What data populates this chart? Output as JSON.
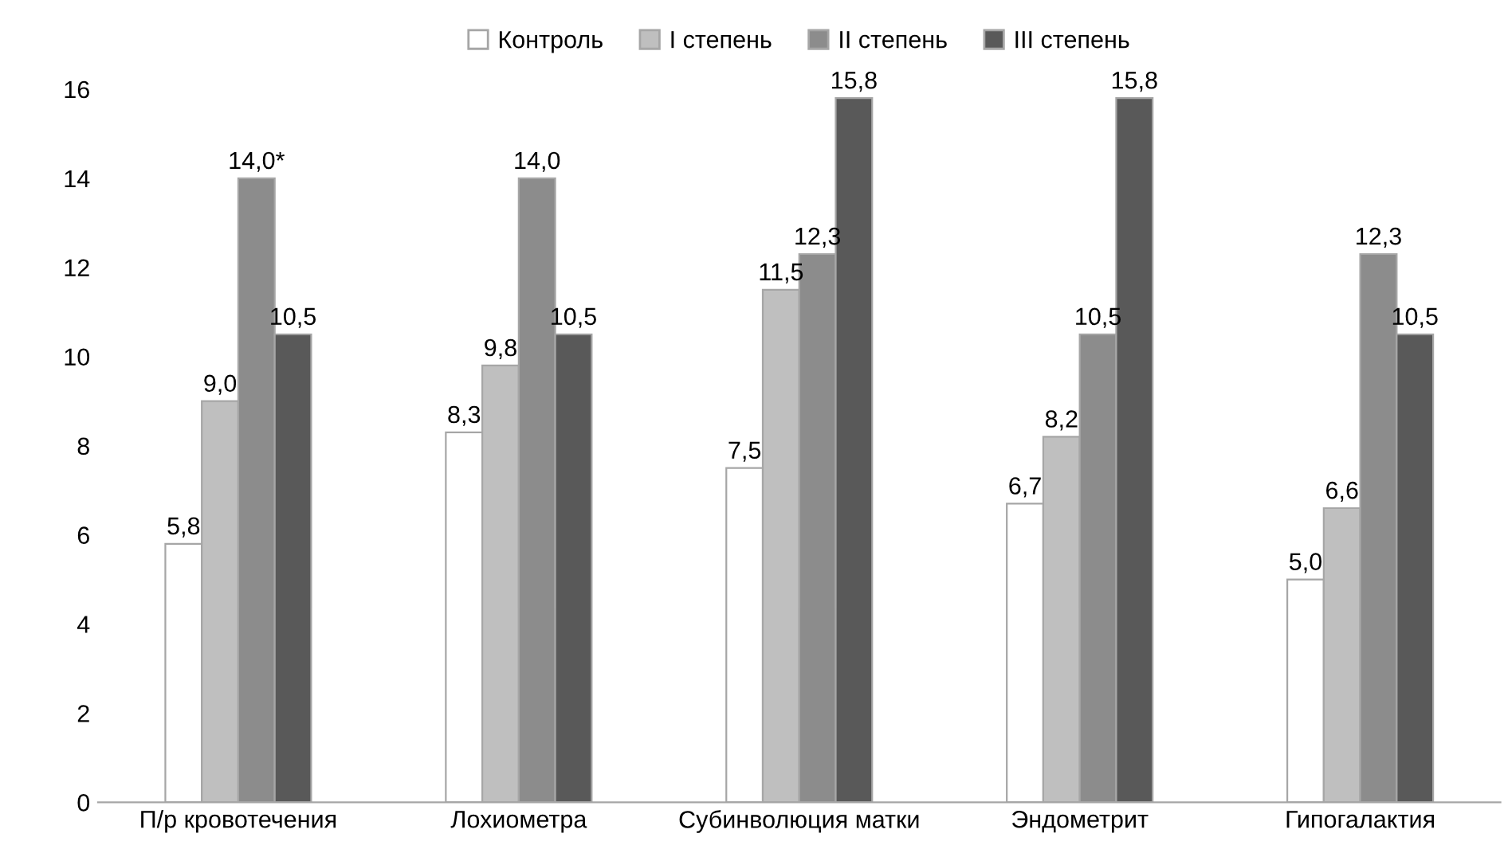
{
  "chart_data": {
    "type": "bar",
    "categories": [
      "П/р кровотечения",
      "Лохиометра",
      "Субинволюция матки",
      "Эндометрит",
      "Гипогалактия"
    ],
    "series": [
      {
        "name": "Контроль",
        "color": "#ffffff",
        "values": [
          5.8,
          8.3,
          7.5,
          6.7,
          5.0
        ],
        "value_labels": [
          "5,8",
          "8,3",
          "7,5",
          "6,7",
          "5,0"
        ]
      },
      {
        "name": "I степень",
        "color": "#bfbfbf",
        "values": [
          9.0,
          9.8,
          11.5,
          8.2,
          6.6
        ],
        "value_labels": [
          "9,0",
          "9,8",
          "11,5",
          "8,2",
          "6,6"
        ]
      },
      {
        "name": "II степень",
        "color": "#8c8c8c",
        "values": [
          14.0,
          14.0,
          12.3,
          10.5,
          12.3
        ],
        "value_labels": [
          "14,0*",
          "14,0",
          "12,3",
          "10,5",
          "12,3"
        ]
      },
      {
        "name": "III степень",
        "color": "#595959",
        "values": [
          10.5,
          10.5,
          15.8,
          15.8,
          10.5
        ],
        "value_labels": [
          "10,5",
          "10,5",
          "15,8",
          "15,8",
          "10,5"
        ]
      }
    ],
    "ylim": [
      0,
      16
    ],
    "yticks": [
      0,
      2,
      4,
      6,
      8,
      10,
      12,
      14,
      16
    ],
    "grid": false,
    "legend": "top"
  }
}
